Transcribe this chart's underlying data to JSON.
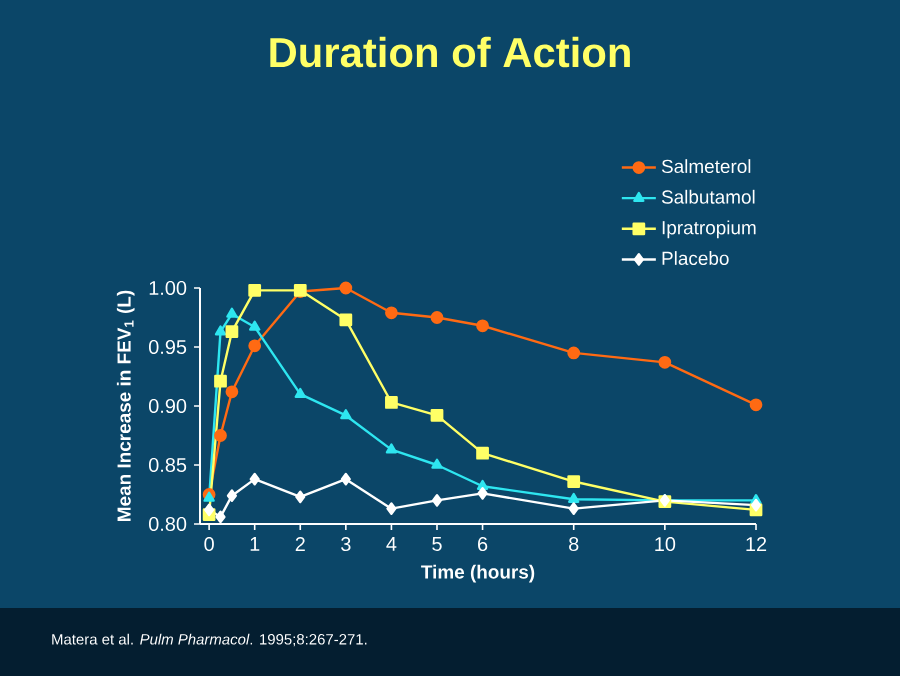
{
  "chart_data": {
    "type": "line",
    "title": "Duration of Action",
    "xlabel": "Time (hours)",
    "ylabel": "Mean Increase in FEV$_{1}$ (L)",
    "x": [
      0,
      0.25,
      0.5,
      1,
      2,
      3,
      4,
      5,
      6,
      8,
      10,
      12
    ],
    "series": [
      {
        "name": "Salmeterol",
        "color": "#ff6a13",
        "marker": "circle",
        "values": [
          0.825,
          0.875,
          0.912,
          0.951,
          0.997,
          1.0,
          0.979,
          0.975,
          0.968,
          0.945,
          0.937,
          0.901
        ]
      },
      {
        "name": "Salbutamol",
        "color": "#2ee6f0",
        "marker": "triangle",
        "values": [
          0.822,
          0.963,
          0.978,
          0.967,
          0.91,
          0.892,
          0.863,
          0.85,
          0.832,
          0.821,
          0.82,
          0.82
        ]
      },
      {
        "name": "Ipratropium",
        "color": "#ffff66",
        "marker": "square",
        "values": [
          0.808,
          0.921,
          0.963,
          0.998,
          0.998,
          0.973,
          0.903,
          0.892,
          0.86,
          0.836,
          0.819,
          0.812
        ]
      },
      {
        "name": "Placebo",
        "color": "#ffffff",
        "marker": "diamond",
        "values": [
          0.812,
          0.806,
          0.824,
          0.838,
          0.823,
          0.838,
          0.813,
          0.82,
          0.826,
          0.813,
          0.82,
          0.816
        ]
      }
    ],
    "xlim": [
      -0.2,
      12
    ],
    "xticks": [
      0,
      1,
      2,
      3,
      4,
      5,
      6,
      8,
      10,
      12
    ],
    "ylim": [
      0.8,
      1.0
    ],
    "yticks": [
      {
        "value": 0.8,
        "label": "0.80"
      },
      {
        "value": 0.85,
        "label": "0.85"
      },
      {
        "value": 0.9,
        "label": "0.90"
      },
      {
        "value": 0.95,
        "label": "0.95"
      },
      {
        "value": 1.0,
        "label": "1.00"
      }
    ],
    "grid": false,
    "legend": "top right",
    "line_style": "solid",
    "annotations": [
      "Matera et al. *Pulm Pharmacol*. 1995;8:267-271."
    ]
  }
}
